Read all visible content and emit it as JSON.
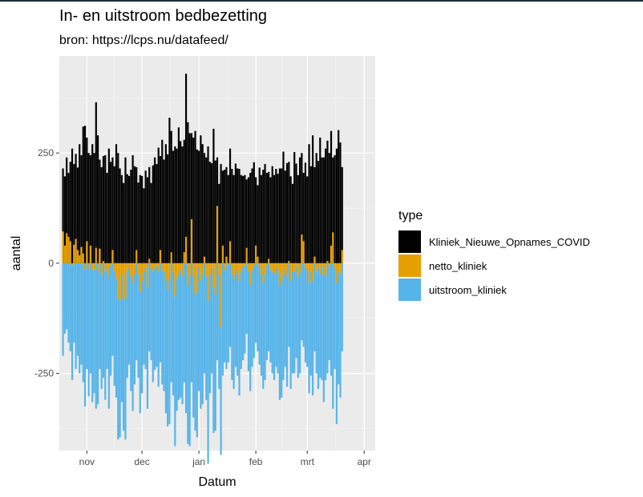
{
  "chart_data": {
    "type": "bar",
    "stacked": true,
    "title": "In- en uitstroom bedbezetting",
    "subtitle": "bron: https://lcps.nu/datafeed/",
    "xlabel": "Datum",
    "ylabel": "aantal",
    "x_tick_labels": [
      "nov",
      "dec",
      "jan",
      "feb",
      "mrt",
      "apr"
    ],
    "y_ticks": [
      -250,
      0,
      250
    ],
    "ylim": [
      -425,
      470
    ],
    "legend_title": "type",
    "legend_position": "right",
    "grid": true,
    "x_start": "2021-10-19",
    "series": [
      {
        "name": "Kliniek_Nieuwe_Opnames_COVID",
        "color": "#000000",
        "values": [
          215,
          197,
          240,
          205,
          230,
          260,
          225,
          248,
          217,
          270,
          245,
          310,
          312,
          285,
          250,
          245,
          270,
          250,
          365,
          290,
          235,
          218,
          243,
          245,
          205,
          260,
          230,
          240,
          220,
          270,
          250,
          215,
          200,
          182,
          240,
          202,
          198,
          212,
          245,
          220,
          218,
          183,
          200,
          198,
          170,
          210,
          195,
          218,
          182,
          222,
          240,
          225,
          262,
          243,
          280,
          235,
          270,
          247,
          330,
          300,
          255,
          265,
          260,
          308,
          277,
          265,
          280,
          430,
          320,
          295,
          295,
          285,
          300,
          258,
          255,
          290,
          270,
          250,
          240,
          265,
          230,
          227,
          305,
          233,
          240,
          180,
          225,
          210,
          212,
          218,
          200,
          260,
          214,
          200,
          226,
          215,
          214,
          200,
          198,
          200,
          190,
          195,
          205,
          215,
          229,
          195,
          177,
          217,
          200,
          212,
          225,
          205,
          207,
          195,
          220,
          200,
          214,
          203,
          215,
          215,
          253,
          210,
          227,
          230,
          197,
          180,
          252,
          226,
          200,
          240,
          250,
          205,
          228,
          197,
          270,
          220,
          290,
          218,
          250,
          232,
          285,
          240,
          240,
          260,
          278,
          250,
          300,
          240,
          245,
          260,
          302,
          274,
          218
        ]
      },
      {
        "name": "netto_kliniek",
        "color": "#E69F00",
        "values": [
          72,
          40,
          68,
          60,
          50,
          -5,
          42,
          55,
          30,
          18,
          37,
          22,
          -15,
          50,
          -12,
          40,
          -15,
          -15,
          35,
          -20,
          33,
          -25,
          5,
          -20,
          -10,
          -30,
          -5,
          30,
          -18,
          -35,
          -80,
          -85,
          -25,
          -80,
          -80,
          -20,
          -10,
          -30,
          -45,
          -25,
          30,
          -25,
          -65,
          -40,
          -20,
          -10,
          -55,
          10,
          -10,
          -20,
          -12,
          -5,
          -20,
          30,
          -15,
          -20,
          -40,
          -60,
          -35,
          25,
          -20,
          -75,
          -35,
          -25,
          -15,
          -30,
          25,
          60,
          -50,
          -25,
          100,
          -30,
          -70,
          -65,
          -10,
          -40,
          -25,
          15,
          -30,
          -85,
          -25,
          -10,
          -55,
          -70,
          130,
          -25,
          -145,
          40,
          -15,
          15,
          -5,
          50,
          -25,
          -35,
          -15,
          -25,
          -40,
          -20,
          -10,
          -5,
          35,
          -20,
          -50,
          -15,
          -5,
          40,
          15,
          -10,
          -25,
          -45,
          -25,
          -5,
          10,
          -15,
          -20,
          -25,
          -10,
          -20,
          -50,
          -40,
          -25,
          -15,
          -30,
          5,
          -40,
          -20,
          -20,
          -5,
          -30,
          -20,
          65,
          50,
          -10,
          -15,
          -45,
          -20,
          -40,
          15,
          -20,
          -10,
          -25,
          -5,
          -25,
          -30,
          5,
          -10,
          40,
          70,
          -10,
          -45,
          -20,
          -25,
          30
        ]
      },
      {
        "name": "uitstroom_kliniek",
        "color": "#56B4E9",
        "values": [
          -210,
          -160,
          -150,
          -180,
          -200,
          -260,
          -180,
          -240,
          -210,
          -250,
          -230,
          -270,
          -310,
          -240,
          -290,
          -250,
          -300,
          -280,
          -330,
          -300,
          -240,
          -260,
          -260,
          -290,
          -230,
          -300,
          -250,
          -210,
          -260,
          -270,
          -320,
          -310,
          -290,
          -300,
          -320,
          -240,
          -220,
          -260,
          -290,
          -250,
          -220,
          -235,
          -275,
          -255,
          -210,
          -230,
          -275,
          -200,
          -210,
          -250,
          -230,
          -230,
          -260,
          -225,
          -260,
          -270,
          -300,
          -310,
          -330,
          -270,
          -280,
          -340,
          -300,
          -285,
          -290,
          -290,
          -270,
          -340,
          -360,
          -390,
          -270,
          -320,
          -310,
          -330,
          -280,
          -290,
          -295,
          -250,
          -280,
          -370,
          -270,
          -240,
          -330,
          -310,
          -220,
          -260,
          -290,
          -255,
          -210,
          -240,
          -220,
          -190,
          -240,
          -250,
          -220,
          -230,
          -260,
          -220,
          -210,
          -200,
          -160,
          -225,
          -240,
          -220,
          -210,
          -180,
          -200,
          -220,
          -230,
          -240,
          -240,
          -215,
          -200,
          -210,
          -230,
          -240,
          -225,
          -230,
          -260,
          -265,
          -240,
          -220,
          -250,
          -190,
          -245,
          -230,
          -230,
          -210,
          -230,
          -230,
          -175,
          -190,
          -215,
          -220,
          -250,
          -235,
          -260,
          -200,
          -230,
          -275,
          -235,
          -260,
          -290,
          -235,
          -250,
          -210,
          -255,
          -330,
          -230,
          -320,
          -255,
          -280,
          -200
        ]
      }
    ]
  }
}
